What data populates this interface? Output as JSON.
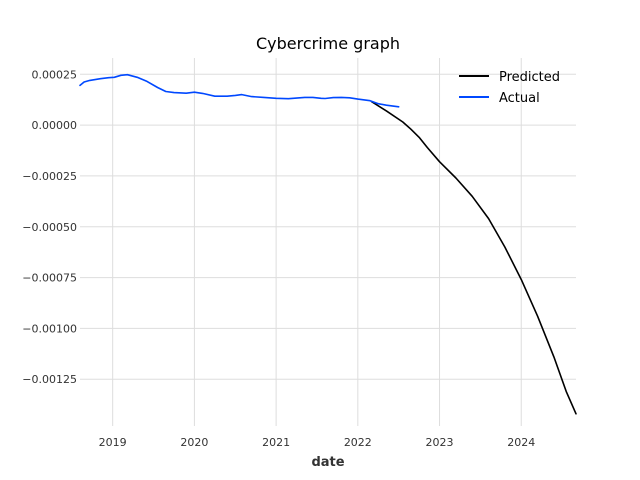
{
  "chart_data": {
    "type": "line",
    "title": "Cybercrime graph",
    "xlabel": "date",
    "ylabel": "",
    "xlim": [
      2018.6,
      2024.67
    ],
    "ylim": [
      -0.00148,
      0.00033
    ],
    "x_ticks": [
      2019,
      2020,
      2021,
      2022,
      2023,
      2024
    ],
    "x_tick_labels": [
      "2019",
      "2020",
      "2021",
      "2022",
      "2023",
      "2024"
    ],
    "y_ticks": [
      0.00025,
      0.0,
      -0.00025,
      -0.0005,
      -0.00075,
      -0.001,
      -0.00125
    ],
    "y_tick_labels": [
      "0.00025",
      "0.00000",
      "−0.00025",
      "−0.00050",
      "−0.00075",
      "−0.00100",
      "−0.00125"
    ],
    "grid": true,
    "legend_position": "top-right",
    "series": [
      {
        "name": "Predicted",
        "color": "#000000",
        "x": [
          2022.17,
          2022.35,
          2022.55,
          2022.65,
          2022.75,
          2022.85,
          2023.0,
          2023.2,
          2023.4,
          2023.6,
          2023.8,
          2024.0,
          2024.2,
          2024.4,
          2024.55,
          2024.67
        ],
        "y": [
          0.000115,
          7e-05,
          1.5e-05,
          -2e-05,
          -6e-05,
          -0.00011,
          -0.00018,
          -0.00026,
          -0.00035,
          -0.00046,
          -0.0006,
          -0.00076,
          -0.00094,
          -0.00114,
          -0.00131,
          -0.00142
        ]
      },
      {
        "name": "Actual",
        "color": "#0048ff",
        "x": [
          2018.6,
          2018.65,
          2018.72,
          2018.85,
          2018.95,
          2019.02,
          2019.1,
          2019.18,
          2019.3,
          2019.42,
          2019.55,
          2019.65,
          2019.75,
          2019.9,
          2020.0,
          2020.1,
          2020.25,
          2020.4,
          2020.5,
          2020.58,
          2020.7,
          2020.85,
          2021.0,
          2021.15,
          2021.25,
          2021.35,
          2021.45,
          2021.55,
          2021.6,
          2021.7,
          2021.8,
          2021.9,
          2022.0,
          2022.15,
          2022.25,
          2022.35,
          2022.5
        ],
        "y": [
          0.000195,
          0.000212,
          0.00022,
          0.000228,
          0.000233,
          0.000235,
          0.000245,
          0.000248,
          0.000235,
          0.000215,
          0.000185,
          0.000165,
          0.00016,
          0.000157,
          0.000162,
          0.000156,
          0.000142,
          0.000142,
          0.000146,
          0.00015,
          0.00014,
          0.000136,
          0.000132,
          0.00013,
          0.000133,
          0.000136,
          0.000136,
          0.000132,
          0.000131,
          0.000135,
          0.000136,
          0.000134,
          0.000128,
          0.00012,
          0.000105,
          9.8e-05,
          9e-05
        ]
      }
    ]
  }
}
